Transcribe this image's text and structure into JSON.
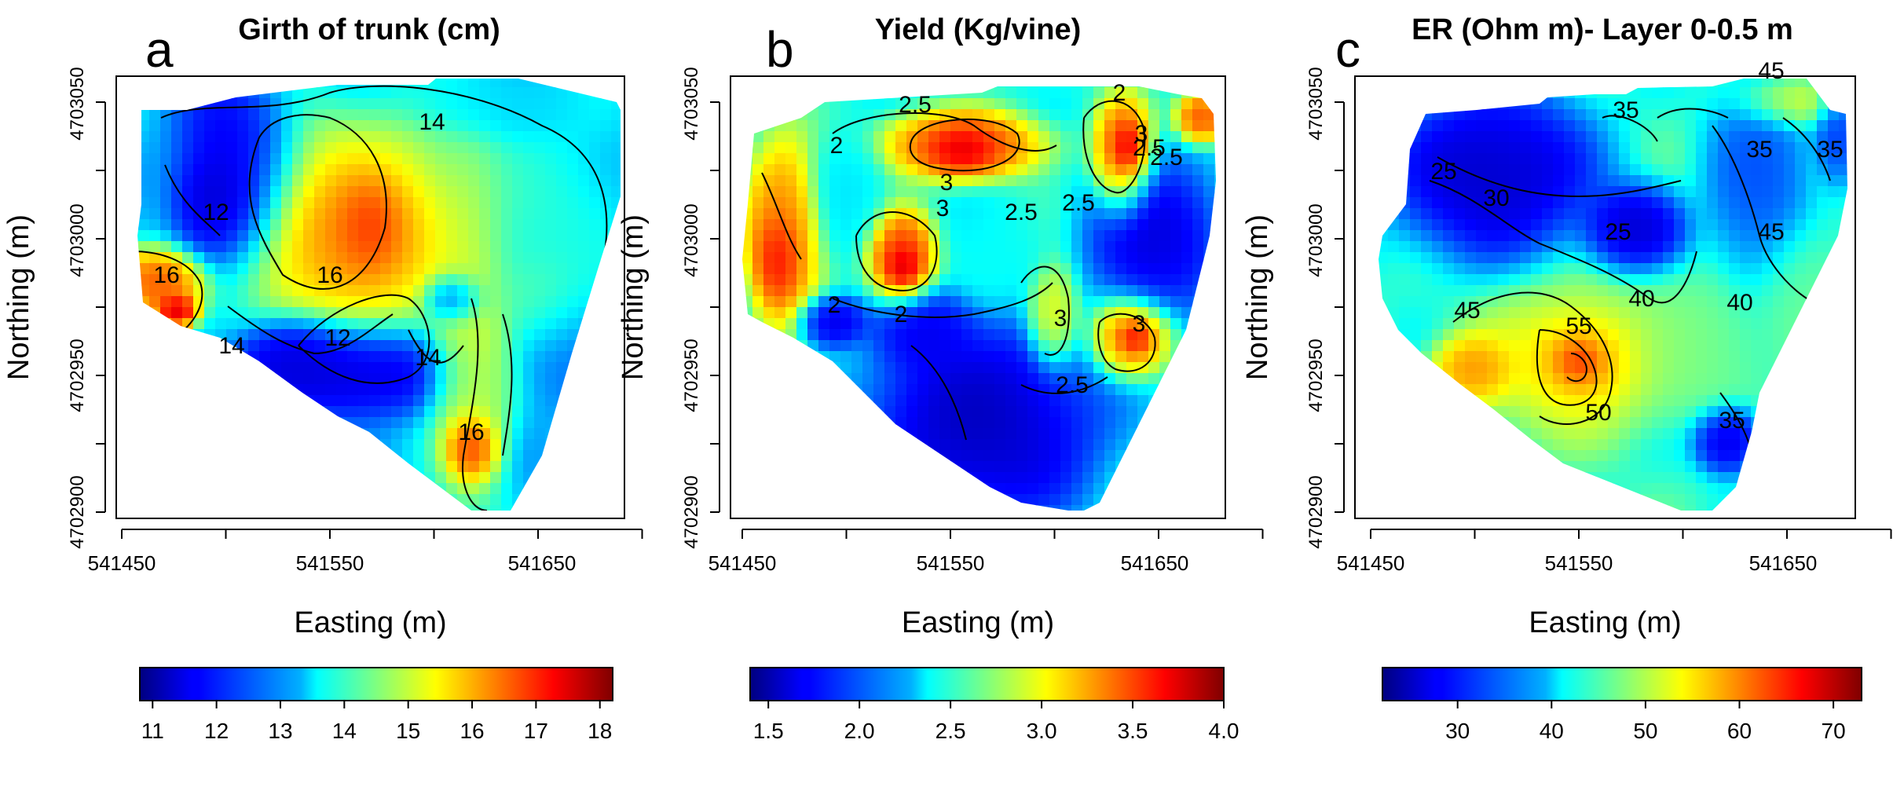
{
  "figure": {
    "name": "spatial-maps-figure"
  },
  "chart_data": [
    {
      "type": "heatmap",
      "panel_letter": "a",
      "title": "Girth of trunk (cm)",
      "xlabel": "Easting (m)",
      "ylabel": "Northing (m)",
      "x_ticks": [
        "541450",
        "541550",
        "541650"
      ],
      "y_ticks": [
        "4702900",
        "4702950",
        "4703000",
        "4703050"
      ],
      "colorbar": {
        "min": 10.8,
        "max": 18.2,
        "ticks": [
          "11",
          "12",
          "13",
          "14",
          "15",
          "16",
          "17",
          "18"
        ]
      },
      "contour_labels": [
        "14",
        "12",
        "16",
        "16",
        "14",
        "12",
        "14",
        "16"
      ]
    },
    {
      "type": "heatmap",
      "panel_letter": "b",
      "title": "Yield (Kg/vine)",
      "xlabel": "Easting (m)",
      "ylabel": "Northing (m)",
      "x_ticks": [
        "541450",
        "541550",
        "541650"
      ],
      "y_ticks": [
        "4702900",
        "4702950",
        "4703000",
        "4703050"
      ],
      "colorbar": {
        "min": 1.4,
        "max": 4.0,
        "ticks": [
          "1.5",
          "2.0",
          "2.5",
          "3.0",
          "3.5",
          "4.0"
        ]
      },
      "contour_labels": [
        "2.5",
        "2",
        "3",
        "2",
        "2.5",
        "3",
        "3",
        "2.5",
        "2.5",
        "2",
        "2",
        "3",
        "3",
        "2.5",
        "2.5"
      ]
    },
    {
      "type": "heatmap",
      "panel_letter": "c",
      "title": "ER (Ohm m)- Layer 0-0.5 m",
      "xlabel": "Easting (m)",
      "ylabel": "Northing (m)",
      "x_ticks": [
        "541450",
        "541550",
        "541650"
      ],
      "y_ticks": [
        "4702900",
        "4702950",
        "4703000",
        "4703050"
      ],
      "colorbar": {
        "min": 22,
        "max": 73,
        "ticks": [
          "30",
          "40",
          "50",
          "60",
          "70"
        ]
      },
      "contour_labels": [
        "35",
        "45",
        "35",
        "35",
        "25",
        "30",
        "25",
        "45",
        "40",
        "40",
        "45",
        "55",
        "50",
        "35"
      ]
    }
  ]
}
